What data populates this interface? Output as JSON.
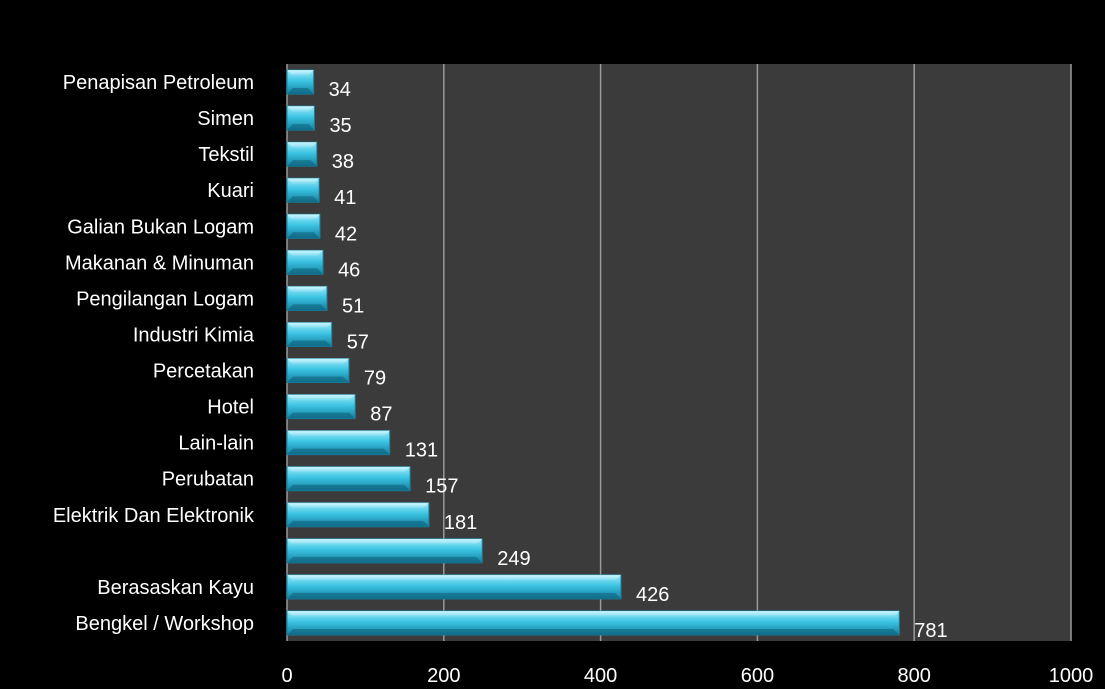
{
  "chart_data": {
    "type": "bar",
    "orientation": "horizontal",
    "categories": [
      "Penapisan Petroleum",
      "Simen",
      "Tekstil",
      "Kuari",
      "Galian Bukan Logam",
      "Makanan & Minuman",
      "Pengilangan Logam",
      "Industri Kimia",
      "Percetakan",
      "Hotel",
      "Lain-lain",
      "Perubatan",
      "Elektrik Dan Elektronik",
      "",
      "Berasaskan Kayu",
      "Bengkel / Workshop"
    ],
    "values": [
      34,
      35,
      38,
      41,
      42,
      46,
      51,
      57,
      79,
      87,
      131,
      157,
      181,
      249,
      426,
      781
    ],
    "xlim": [
      0,
      1000
    ],
    "xticks": [
      0,
      200,
      400,
      600,
      800,
      1000
    ],
    "title": "",
    "xlabel": "",
    "ylabel": "",
    "grid": true,
    "data_labels": true,
    "legend": "none"
  },
  "colors": {
    "background": "#000000",
    "plot_area": "#3b3b3b",
    "gridline": "#9a9a9a",
    "bar_light": "#8fe6f7",
    "bar_mid": "#33bfdf",
    "bar_dark": "#1683a3",
    "text": "#ffffff"
  }
}
